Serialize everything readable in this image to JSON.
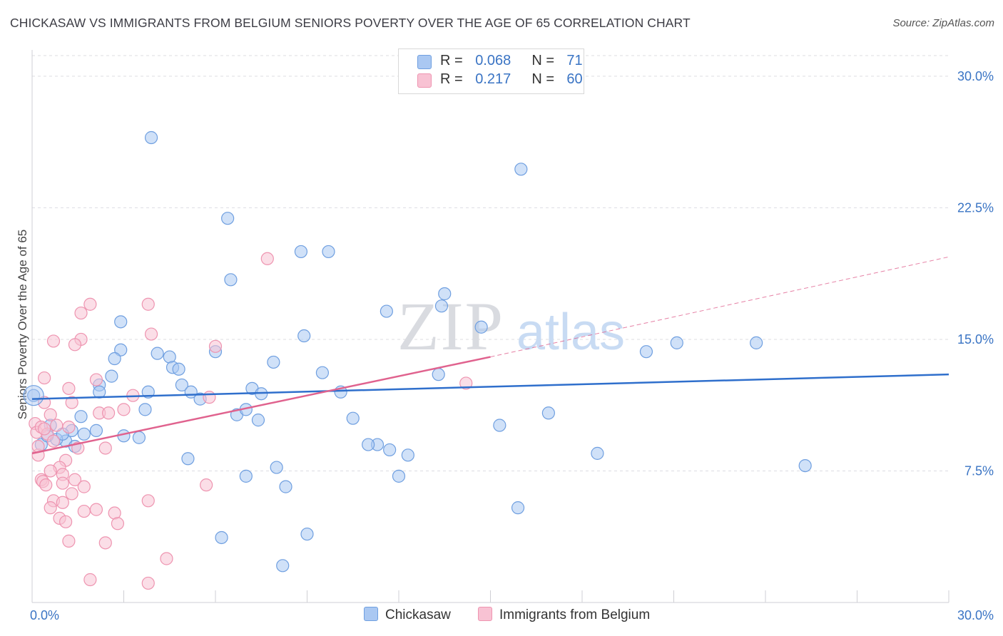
{
  "title": "CHICKASAW VS IMMIGRANTS FROM BELGIUM SENIORS POVERTY OVER THE AGE OF 65 CORRELATION CHART",
  "source": "Source: ZipAtlas.com",
  "watermark": {
    "zip": "ZIP",
    "atlas": "atlas"
  },
  "legend_top": [
    {
      "r_label": "R =",
      "r_value": "0.068",
      "n_label": "N =",
      "n_value": "71"
    },
    {
      "r_label": "R =",
      "r_value": "0.217",
      "n_label": "N =",
      "n_value": "60"
    }
  ],
  "chart_data": {
    "type": "scatter",
    "ylabel": "Seniors Poverty Over the Age of 65",
    "xlim": [
      0,
      30
    ],
    "ylim": [
      0,
      31.5
    ],
    "x_tick_labels": [
      "0.0%",
      "30.0%"
    ],
    "y_ticks": [
      7.5,
      15.0,
      22.5,
      30.0
    ],
    "y_tick_labels": [
      "7.5%",
      "15.0%",
      "22.5%",
      "30.0%"
    ],
    "grid": true,
    "legend_position": "bottom",
    "series": [
      {
        "name": "Chickasaw",
        "color": "#6f9fe0",
        "fill": "#aac8f2",
        "trend": {
          "x": [
            0,
            30
          ],
          "y": [
            11.6,
            13.0
          ],
          "color": "#2f6fcc"
        },
        "points": [
          [
            3.9,
            26.5
          ],
          [
            16.0,
            24.7
          ],
          [
            6.4,
            21.9
          ],
          [
            8.8,
            20.0
          ],
          [
            9.7,
            20.0
          ],
          [
            6.5,
            18.4
          ],
          [
            13.5,
            17.6
          ],
          [
            13.4,
            16.9
          ],
          [
            11.6,
            16.6
          ],
          [
            14.7,
            15.7
          ],
          [
            2.9,
            16.0
          ],
          [
            8.9,
            15.2
          ],
          [
            2.9,
            14.4
          ],
          [
            4.1,
            14.2
          ],
          [
            4.5,
            14.0
          ],
          [
            2.7,
            13.9
          ],
          [
            6.0,
            14.3
          ],
          [
            7.9,
            13.7
          ],
          [
            4.6,
            13.4
          ],
          [
            4.8,
            13.3
          ],
          [
            20.1,
            14.3
          ],
          [
            21.1,
            14.8
          ],
          [
            23.7,
            14.8
          ],
          [
            2.6,
            12.9
          ],
          [
            9.5,
            13.1
          ],
          [
            13.3,
            13.0
          ],
          [
            2.2,
            12.4
          ],
          [
            3.8,
            12.0
          ],
          [
            4.9,
            12.4
          ],
          [
            5.2,
            12.0
          ],
          [
            2.2,
            12.0
          ],
          [
            7.2,
            12.2
          ],
          [
            7.5,
            11.9
          ],
          [
            10.1,
            12.0
          ],
          [
            5.5,
            11.6
          ],
          [
            0.05,
            11.8
          ],
          [
            0.6,
            10.1
          ],
          [
            1.3,
            9.8
          ],
          [
            1.7,
            9.6
          ],
          [
            2.1,
            9.8
          ],
          [
            1.1,
            9.2
          ],
          [
            3.0,
            9.5
          ],
          [
            3.5,
            9.4
          ],
          [
            1.6,
            10.6
          ],
          [
            3.7,
            11.0
          ],
          [
            6.7,
            10.7
          ],
          [
            7.0,
            11.0
          ],
          [
            7.4,
            10.4
          ],
          [
            10.5,
            10.5
          ],
          [
            16.9,
            10.8
          ],
          [
            15.3,
            10.1
          ],
          [
            1.4,
            8.9
          ],
          [
            0.3,
            9.0
          ],
          [
            11.3,
            9.0
          ],
          [
            11.0,
            9.0
          ],
          [
            11.7,
            8.7
          ],
          [
            12.3,
            8.4
          ],
          [
            5.1,
            8.2
          ],
          [
            18.5,
            8.5
          ],
          [
            8.0,
            7.7
          ],
          [
            25.3,
            7.8
          ],
          [
            7.0,
            7.2
          ],
          [
            12.0,
            7.2
          ],
          [
            8.3,
            6.6
          ],
          [
            15.9,
            5.4
          ],
          [
            6.2,
            3.7
          ],
          [
            9.0,
            3.9
          ],
          [
            8.2,
            2.1
          ],
          [
            0.5,
            9.5
          ],
          [
            0.8,
            9.3
          ],
          [
            1.0,
            9.6
          ]
        ]
      },
      {
        "name": "Immigrants from Belgium",
        "color": "#ee94b0",
        "fill": "#f8c2d3",
        "trend": {
          "x": [
            0,
            15
          ],
          "y": [
            8.5,
            14.0
          ],
          "color": "#e0628e",
          "extension": {
            "x": [
              15,
              30
            ],
            "y": [
              14.0,
              19.7
            ]
          }
        },
        "points": [
          [
            7.7,
            19.6
          ],
          [
            1.9,
            17.0
          ],
          [
            3.8,
            17.0
          ],
          [
            1.6,
            16.5
          ],
          [
            3.9,
            15.3
          ],
          [
            0.7,
            14.9
          ],
          [
            1.6,
            15.0
          ],
          [
            1.4,
            14.7
          ],
          [
            6.0,
            14.6
          ],
          [
            14.2,
            12.5
          ],
          [
            0.4,
            12.8
          ],
          [
            2.1,
            12.7
          ],
          [
            1.2,
            12.2
          ],
          [
            3.3,
            11.8
          ],
          [
            5.8,
            11.7
          ],
          [
            0.4,
            11.4
          ],
          [
            1.3,
            11.4
          ],
          [
            3.0,
            11.0
          ],
          [
            2.2,
            10.8
          ],
          [
            2.5,
            10.8
          ],
          [
            0.1,
            10.2
          ],
          [
            0.6,
            10.7
          ],
          [
            0.8,
            10.1
          ],
          [
            0.15,
            9.7
          ],
          [
            0.3,
            10.0
          ],
          [
            0.5,
            9.6
          ],
          [
            0.7,
            9.2
          ],
          [
            1.5,
            8.8
          ],
          [
            2.4,
            8.8
          ],
          [
            0.2,
            8.4
          ],
          [
            1.1,
            8.1
          ],
          [
            0.9,
            7.7
          ],
          [
            0.6,
            7.5
          ],
          [
            1.4,
            7.0
          ],
          [
            1.0,
            7.3
          ],
          [
            0.3,
            7.0
          ],
          [
            0.35,
            6.9
          ],
          [
            1.0,
            6.8
          ],
          [
            1.7,
            6.6
          ],
          [
            5.7,
            6.7
          ],
          [
            1.3,
            6.2
          ],
          [
            0.7,
            5.8
          ],
          [
            1.0,
            5.7
          ],
          [
            3.8,
            5.8
          ],
          [
            1.7,
            5.2
          ],
          [
            2.1,
            5.3
          ],
          [
            2.7,
            5.1
          ],
          [
            0.6,
            5.4
          ],
          [
            0.9,
            4.8
          ],
          [
            1.1,
            4.6
          ],
          [
            2.8,
            4.5
          ],
          [
            1.2,
            3.5
          ],
          [
            2.4,
            3.4
          ],
          [
            4.4,
            2.5
          ],
          [
            1.9,
            1.3
          ],
          [
            3.8,
            1.1
          ],
          [
            0.2,
            8.9
          ],
          [
            0.4,
            9.9
          ],
          [
            1.2,
            10.0
          ],
          [
            0.45,
            6.7
          ]
        ]
      }
    ]
  }
}
